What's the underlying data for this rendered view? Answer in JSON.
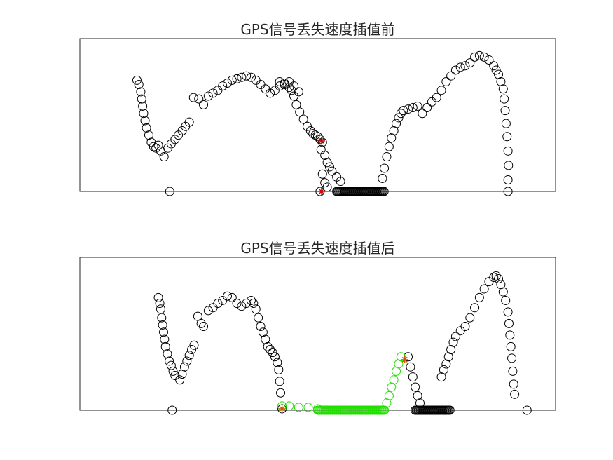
{
  "chart_data": [
    {
      "type": "scatter",
      "title": "GPS信号丢失速度插值前",
      "xlabel": "",
      "ylabel": "",
      "xlim": [
        0,
        1
      ],
      "ylim": [
        0,
        1
      ],
      "grid": false,
      "series": [
        {
          "color": "#000000",
          "marker": "circle-open",
          "points": [
            [
              0.12,
              0.77
            ],
            [
              0.124,
              0.74
            ],
            [
              0.128,
              0.69
            ],
            [
              0.13,
              0.64
            ],
            [
              0.132,
              0.59
            ],
            [
              0.134,
              0.54
            ],
            [
              0.137,
              0.49
            ],
            [
              0.14,
              0.44
            ],
            [
              0.145,
              0.39
            ],
            [
              0.15,
              0.34
            ],
            [
              0.155,
              0.31
            ],
            [
              0.16,
              0.3
            ],
            [
              0.165,
              0.32
            ],
            [
              0.17,
              0.28
            ],
            [
              0.177,
              0.24
            ],
            [
              0.185,
              0.3
            ],
            [
              0.192,
              0.33
            ],
            [
              0.2,
              0.36
            ],
            [
              0.207,
              0.39
            ],
            [
              0.215,
              0.42
            ],
            [
              0.222,
              0.45
            ],
            [
              0.23,
              0.48
            ],
            [
              0.239,
              0.65
            ],
            [
              0.25,
              0.64
            ],
            [
              0.26,
              0.6
            ],
            [
              0.27,
              0.66
            ],
            [
              0.28,
              0.68
            ],
            [
              0.29,
              0.7
            ],
            [
              0.3,
              0.73
            ],
            [
              0.31,
              0.75
            ],
            [
              0.32,
              0.77
            ],
            [
              0.33,
              0.78
            ],
            [
              0.34,
              0.79
            ],
            [
              0.35,
              0.8
            ],
            [
              0.36,
              0.79
            ],
            [
              0.37,
              0.77
            ],
            [
              0.38,
              0.74
            ],
            [
              0.39,
              0.71
            ],
            [
              0.4,
              0.68
            ],
            [
              0.41,
              0.7
            ],
            [
              0.42,
              0.73
            ],
            [
              0.43,
              0.75
            ],
            [
              0.44,
              0.76
            ],
            [
              0.45,
              0.73
            ],
            [
              0.46,
              0.69
            ],
            [
              0.42,
              0.76
            ],
            [
              0.43,
              0.74
            ],
            [
              0.44,
              0.72
            ],
            [
              0.445,
              0.7
            ],
            [
              0.45,
              0.66
            ],
            [
              0.455,
              0.6
            ],
            [
              0.462,
              0.55
            ],
            [
              0.47,
              0.5
            ],
            [
              0.478,
              0.45
            ],
            [
              0.485,
              0.42
            ],
            [
              0.49,
              0.4
            ],
            [
              0.495,
              0.39
            ],
            [
              0.5,
              0.38
            ],
            [
              0.505,
              0.36
            ],
            [
              0.51,
              0.34
            ],
            [
              0.507,
              0.29
            ],
            [
              0.515,
              0.25
            ],
            [
              0.52,
              0.2
            ],
            [
              0.525,
              0.17
            ],
            [
              0.53,
              0.14
            ],
            [
              0.54,
              0.1
            ],
            [
              0.548,
              0.07
            ],
            [
              0.51,
              0.12
            ],
            [
              0.515,
              0.06
            ],
            [
              0.52,
              0.03
            ],
            [
              0.636,
              0.09
            ],
            [
              0.64,
              0.16
            ],
            [
              0.645,
              0.24
            ],
            [
              0.65,
              0.31
            ],
            [
              0.655,
              0.37
            ],
            [
              0.66,
              0.42
            ],
            [
              0.665,
              0.47
            ],
            [
              0.67,
              0.51
            ],
            [
              0.675,
              0.54
            ],
            [
              0.68,
              0.56
            ],
            [
              0.69,
              0.57
            ],
            [
              0.7,
              0.58
            ],
            [
              0.71,
              0.59
            ],
            [
              0.72,
              0.54
            ],
            [
              0.73,
              0.58
            ],
            [
              0.74,
              0.62
            ],
            [
              0.75,
              0.65
            ],
            [
              0.76,
              0.7
            ],
            [
              0.77,
              0.76
            ],
            [
              0.78,
              0.8
            ],
            [
              0.79,
              0.84
            ],
            [
              0.8,
              0.86
            ],
            [
              0.81,
              0.87
            ],
            [
              0.82,
              0.89
            ],
            [
              0.83,
              0.93
            ],
            [
              0.84,
              0.94
            ],
            [
              0.85,
              0.93
            ],
            [
              0.86,
              0.91
            ],
            [
              0.87,
              0.87
            ],
            [
              0.875,
              0.84
            ],
            [
              0.88,
              0.81
            ],
            [
              0.885,
              0.76
            ],
            [
              0.89,
              0.71
            ],
            [
              0.892,
              0.64
            ],
            [
              0.894,
              0.56
            ],
            [
              0.896,
              0.47
            ],
            [
              0.898,
              0.38
            ],
            [
              0.9,
              0.28
            ],
            [
              0.901,
              0.18
            ],
            [
              0.9,
              0.08
            ],
            [
              0.189,
              0.0
            ],
            [
              0.505,
              0.0
            ],
            [
              0.9,
              0.0
            ]
          ],
          "runs": [
            [
              0.54,
              0.64,
              0.0
            ]
          ]
        },
        {
          "color": "#cc0000",
          "marker": "asterisk",
          "points": [
            [
              0.508,
              0.35
            ],
            [
              0.508,
              0.0
            ]
          ]
        }
      ]
    },
    {
      "type": "scatter",
      "title": "GPS信号丢失速度插值后",
      "xlabel": "",
      "ylabel": "",
      "xlim": [
        0,
        1
      ],
      "ylim": [
        0,
        1
      ],
      "grid": false,
      "series": [
        {
          "color": "#000000",
          "marker": "circle-open",
          "points": [
            [
              0.165,
              0.78
            ],
            [
              0.168,
              0.74
            ],
            [
              0.17,
              0.7
            ],
            [
              0.172,
              0.64
            ],
            [
              0.174,
              0.59
            ],
            [
              0.176,
              0.54
            ],
            [
              0.178,
              0.49
            ],
            [
              0.18,
              0.44
            ],
            [
              0.184,
              0.39
            ],
            [
              0.188,
              0.34
            ],
            [
              0.192,
              0.31
            ],
            [
              0.196,
              0.27
            ],
            [
              0.2,
              0.24
            ],
            [
              0.21,
              0.21
            ],
            [
              0.215,
              0.25
            ],
            [
              0.22,
              0.3
            ],
            [
              0.225,
              0.34
            ],
            [
              0.23,
              0.38
            ],
            [
              0.235,
              0.42
            ],
            [
              0.24,
              0.45
            ],
            [
              0.248,
              0.65
            ],
            [
              0.255,
              0.6
            ],
            [
              0.26,
              0.58
            ],
            [
              0.27,
              0.69
            ],
            [
              0.28,
              0.71
            ],
            [
              0.29,
              0.74
            ],
            [
              0.3,
              0.76
            ],
            [
              0.31,
              0.79
            ],
            [
              0.32,
              0.78
            ],
            [
              0.33,
              0.74
            ],
            [
              0.34,
              0.72
            ],
            [
              0.35,
              0.74
            ],
            [
              0.36,
              0.76
            ],
            [
              0.365,
              0.74
            ],
            [
              0.37,
              0.7
            ],
            [
              0.375,
              0.64
            ],
            [
              0.38,
              0.58
            ],
            [
              0.385,
              0.54
            ],
            [
              0.39,
              0.49
            ],
            [
              0.395,
              0.44
            ],
            [
              0.4,
              0.42
            ],
            [
              0.405,
              0.4
            ],
            [
              0.41,
              0.37
            ],
            [
              0.415,
              0.33
            ],
            [
              0.418,
              0.28
            ],
            [
              0.42,
              0.2
            ],
            [
              0.422,
              0.12
            ],
            [
              0.194,
              0.0
            ],
            [
              0.425,
              0.01
            ],
            [
              0.69,
              0.37
            ],
            [
              0.695,
              0.3
            ],
            [
              0.7,
              0.23
            ],
            [
              0.705,
              0.16
            ],
            [
              0.71,
              0.1
            ],
            [
              0.715,
              0.05
            ],
            [
              0.76,
              0.23
            ],
            [
              0.765,
              0.28
            ],
            [
              0.77,
              0.32
            ],
            [
              0.775,
              0.37
            ],
            [
              0.78,
              0.42
            ],
            [
              0.785,
              0.47
            ],
            [
              0.79,
              0.51
            ],
            [
              0.8,
              0.55
            ],
            [
              0.81,
              0.58
            ],
            [
              0.82,
              0.64
            ],
            [
              0.83,
              0.71
            ],
            [
              0.84,
              0.78
            ],
            [
              0.85,
              0.84
            ],
            [
              0.86,
              0.89
            ],
            [
              0.87,
              0.92
            ],
            [
              0.875,
              0.93
            ],
            [
              0.88,
              0.91
            ],
            [
              0.885,
              0.87
            ],
            [
              0.89,
              0.82
            ],
            [
              0.895,
              0.76
            ],
            [
              0.9,
              0.68
            ],
            [
              0.902,
              0.6
            ],
            [
              0.904,
              0.52
            ],
            [
              0.906,
              0.44
            ],
            [
              0.908,
              0.36
            ],
            [
              0.91,
              0.27
            ],
            [
              0.912,
              0.18
            ],
            [
              0.914,
              0.11
            ],
            [
              0.94,
              0.0
            ]
          ],
          "runs": [
            [
              0.705,
              0.78,
              0.0
            ]
          ]
        },
        {
          "color": "#22dd00",
          "marker": "circle-open",
          "points": [
            [
              0.425,
              0.03
            ],
            [
              0.44,
              0.03
            ],
            [
              0.46,
              0.02
            ],
            [
              0.48,
              0.02
            ],
            [
              0.5,
              0.01
            ],
            [
              0.64,
              0.0
            ],
            [
              0.645,
              0.05
            ],
            [
              0.65,
              0.1
            ],
            [
              0.655,
              0.16
            ],
            [
              0.66,
              0.21
            ],
            [
              0.665,
              0.27
            ],
            [
              0.67,
              0.32
            ],
            [
              0.675,
              0.37
            ]
          ],
          "runs": [
            [
              0.5,
              0.64,
              0.0
            ]
          ]
        },
        {
          "color": "#cc5500",
          "marker": "asterisk",
          "points": [
            [
              0.425,
              0.01
            ],
            [
              0.683,
              0.35
            ]
          ]
        }
      ]
    }
  ]
}
